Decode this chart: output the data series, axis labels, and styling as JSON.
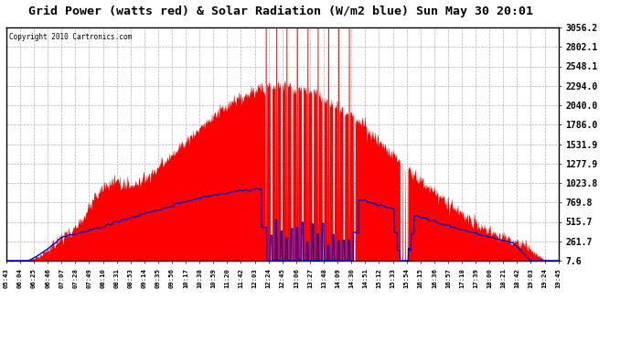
{
  "title": "Grid Power (watts red) & Solar Radiation (W/m2 blue) Sun May 30 20:01",
  "copyright": "Copyright 2010 Cartronics.com",
  "background_color": "#ffffff",
  "plot_bg_color": "#ffffff",
  "grid_color": "#aaaaaa",
  "yticks": [
    7.6,
    261.7,
    515.7,
    769.8,
    1023.8,
    1277.9,
    1531.9,
    1786.0,
    2040.0,
    2294.0,
    2548.1,
    2802.1,
    3056.2
  ],
  "ymin": 7.6,
  "ymax": 3056.2,
  "red_color": "#ff0000",
  "blue_color": "#0000cc",
  "xtick_labels": [
    "05:43",
    "06:04",
    "06:25",
    "06:46",
    "07:07",
    "07:28",
    "07:49",
    "08:10",
    "08:31",
    "08:53",
    "09:14",
    "09:35",
    "09:56",
    "10:17",
    "10:38",
    "10:59",
    "11:20",
    "11:42",
    "12:03",
    "12:24",
    "12:45",
    "13:06",
    "13:27",
    "13:48",
    "14:09",
    "14:30",
    "14:51",
    "15:12",
    "15:33",
    "15:54",
    "16:15",
    "16:36",
    "16:57",
    "17:18",
    "17:39",
    "18:00",
    "18:21",
    "18:42",
    "19:03",
    "19:24",
    "19:45"
  ]
}
